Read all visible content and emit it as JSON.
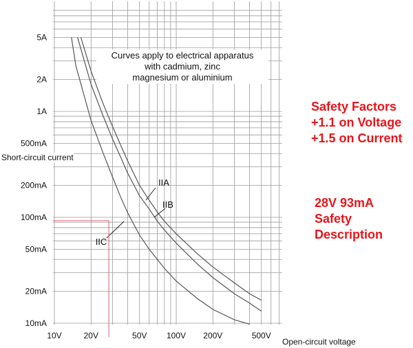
{
  "chart_data": {
    "type": "line",
    "xlabel": "Open-circuit voltage",
    "ylabel": "Short-circuit current",
    "x_scale": "log",
    "y_scale": "log",
    "xlim": [
      10,
      600
    ],
    "ylim": [
      0.01,
      5
    ],
    "grid": true,
    "x_ticks": [
      {
        "v": 10,
        "label": "10V"
      },
      {
        "v": 20,
        "label": "20V"
      },
      {
        "v": 50,
        "label": "50V"
      },
      {
        "v": 100,
        "label": "100V"
      },
      {
        "v": 200,
        "label": "200V"
      },
      {
        "v": 500,
        "label": "500V"
      }
    ],
    "y_ticks": [
      {
        "v": 0.01,
        "label": "10mA"
      },
      {
        "v": 0.02,
        "label": "20mA"
      },
      {
        "v": 0.05,
        "label": "50mA"
      },
      {
        "v": 0.1,
        "label": "100mA"
      },
      {
        "v": 0.2,
        "label": "200mA"
      },
      {
        "v": 0.5,
        "label": "500mA"
      },
      {
        "v": 1,
        "label": "1A"
      },
      {
        "v": 2,
        "label": "2A"
      },
      {
        "v": 5,
        "label": "5A"
      }
    ],
    "series": [
      {
        "name": "IIC",
        "x": [
          13.8,
          15,
          20,
          25,
          30,
          35,
          40,
          50,
          60,
          70,
          80,
          100,
          150,
          200,
          300,
          400
        ],
        "y": [
          5,
          2.7,
          0.82,
          0.41,
          0.24,
          0.155,
          0.11,
          0.068,
          0.05,
          0.04,
          0.033,
          0.025,
          0.017,
          0.0135,
          0.0108,
          0.0098
        ]
      },
      {
        "name": "IIB",
        "x": [
          15.5,
          20,
          25,
          30,
          35,
          40,
          50,
          60,
          70,
          80,
          100,
          150,
          200,
          300,
          400,
          500
        ],
        "y": [
          5,
          1.8,
          0.92,
          0.55,
          0.37,
          0.26,
          0.16,
          0.12,
          0.092,
          0.076,
          0.057,
          0.036,
          0.027,
          0.019,
          0.0155,
          0.013
        ]
      },
      {
        "name": "IIA",
        "x": [
          16.5,
          20,
          25,
          30,
          35,
          40,
          50,
          60,
          70,
          80,
          100,
          150,
          200,
          300,
          400,
          500
        ],
        "y": [
          5,
          2.4,
          1.2,
          0.72,
          0.48,
          0.34,
          0.2,
          0.145,
          0.112,
          0.092,
          0.07,
          0.045,
          0.034,
          0.024,
          0.019,
          0.0165
        ]
      }
    ],
    "marker": {
      "x": 28,
      "y": 0.093
    }
  },
  "note_lines": [
    "Curves apply to electrical apparatus",
    "with cadmium, zinc",
    "magnesium or aluminium"
  ],
  "safety_factors": [
    "Safety Factors",
    "+1.1 on Voltage",
    "+1.5 on Current"
  ],
  "safety_description": [
    "28V 93mA",
    "Safety",
    "Description"
  ],
  "colors": {
    "curve": "#555555",
    "grid": "#9a9a9a",
    "marker": "#e06070",
    "safety_text": "#e8151b"
  }
}
